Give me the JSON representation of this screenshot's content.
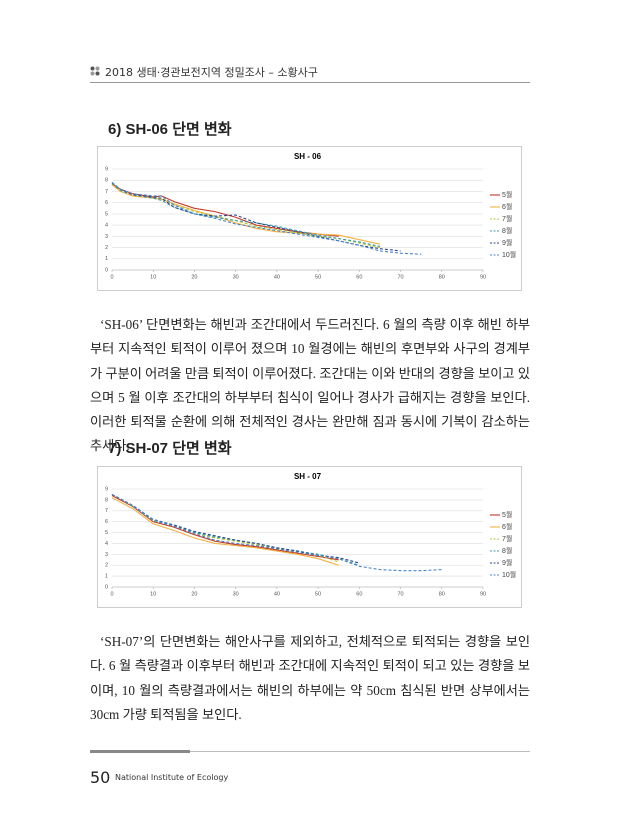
{
  "header": {
    "title": "2018 생태·경관보전지역 정밀조사 – 소황사구"
  },
  "sections": [
    {
      "heading": "6) SH-06 단면 변화",
      "paragraph": "‘SH-06’ 단면변화는 해빈과 조간대에서 두드러진다. 6 월의 측량 이후 해빈 하부부터 지속적인 퇴적이 이루어 졌으며 10 월경에는 해빈의 후면부와 사구의 경계부가 구분이 어려울 만큼 퇴적이 이루어졌다. 조간대는 이와 반대의 경향을 보이고 있으며 5 월 이후 조간대의 하부부터 침식이 일어나 경사가 급해지는 경향을 보인다. 이러한 퇴적물 순환에 의해 전체적인 경사는 완만해 짐과 동시에 기복이 감소하는 추세다."
    },
    {
      "heading": "7) SH-07 단면 변화",
      "paragraph": "‘SH-07’의 단면변화는 해안사구를 제외하고, 전체적으로 퇴적되는 경향을 보인다. 6 월 측량결과 이후부터 해빈과 조간대에 지속적인 퇴적이 되고 있는 경향을 보이며, 10 월의 측량결과에서는 해빈의 하부에는 약 50cm 침식된 반면 상부에서는 30cm 가량 퇴적됨을 보인다."
    }
  ],
  "chart_data": [
    {
      "type": "line",
      "title": "SH - 06",
      "x": [
        0,
        2,
        5,
        10,
        12,
        15,
        20,
        25,
        30,
        35,
        40,
        45,
        50,
        55,
        60,
        65,
        70,
        75
      ],
      "series": [
        {
          "name": "5월",
          "color": "#c0392b",
          "style": "solid",
          "values": [
            7.7,
            7.2,
            6.8,
            6.5,
            6.6,
            6.1,
            5.5,
            5.2,
            4.7,
            4.0,
            3.7,
            3.4,
            3.2,
            3.0,
            null,
            null,
            null,
            null
          ]
        },
        {
          "name": "6월",
          "color": "#f5b041",
          "style": "solid",
          "values": [
            7.6,
            7.0,
            6.6,
            6.4,
            6.3,
            5.9,
            5.3,
            4.8,
            4.2,
            3.7,
            3.4,
            3.3,
            3.2,
            3.1,
            2.7,
            2.3,
            null,
            null
          ]
        },
        {
          "name": "7월",
          "color": "#b7c93a",
          "style": "dashed",
          "values": [
            7.7,
            7.1,
            6.8,
            6.4,
            6.4,
            5.8,
            5.2,
            4.8,
            4.4,
            3.9,
            3.6,
            3.3,
            3.0,
            2.8,
            2.4,
            2.0,
            null,
            null
          ]
        },
        {
          "name": "8월",
          "color": "#3aa0a8",
          "style": "dashed",
          "values": [
            7.7,
            7.1,
            6.7,
            6.4,
            6.2,
            5.6,
            5.0,
            4.7,
            4.4,
            4.2,
            3.9,
            3.5,
            3.1,
            2.8,
            2.5,
            2.1,
            null,
            null
          ]
        },
        {
          "name": "9월",
          "color": "#2e4a8c",
          "style": "dashed",
          "values": [
            7.8,
            7.2,
            6.7,
            6.5,
            6.4,
            5.6,
            5.0,
            4.8,
            4.9,
            4.2,
            3.8,
            3.4,
            3.0,
            2.6,
            2.2,
            1.9,
            1.7,
            null
          ]
        },
        {
          "name": "10월",
          "color": "#4a86c8",
          "style": "dashed",
          "values": [
            7.8,
            7.2,
            6.8,
            6.6,
            6.6,
            5.8,
            5.0,
            4.6,
            4.1,
            3.8,
            3.5,
            3.2,
            2.9,
            2.6,
            2.2,
            1.7,
            1.5,
            1.4
          ]
        }
      ],
      "xlim": [
        0,
        90
      ],
      "xticks": [
        0,
        10,
        20,
        30,
        40,
        50,
        60,
        70,
        80,
        90
      ],
      "ylim": [
        0,
        9
      ],
      "yticks": [
        0,
        1,
        2,
        3,
        4,
        5,
        6,
        7,
        8,
        9
      ],
      "grid": true
    },
    {
      "type": "line",
      "title": "SH - 07",
      "x": [
        0,
        2,
        5,
        10,
        15,
        20,
        25,
        30,
        35,
        40,
        45,
        50,
        55,
        60,
        65,
        70,
        75,
        80
      ],
      "series": [
        {
          "name": "5월",
          "color": "#c0392b",
          "style": "solid",
          "values": [
            8.4,
            8.0,
            7.4,
            6.0,
            5.5,
            4.8,
            4.2,
            3.9,
            3.7,
            3.4,
            3.1,
            2.8,
            2.5,
            null,
            null,
            null,
            null,
            null
          ]
        },
        {
          "name": "6월",
          "color": "#f5b041",
          "style": "solid",
          "values": [
            8.2,
            7.8,
            7.2,
            5.8,
            5.2,
            4.5,
            4.0,
            3.8,
            3.6,
            3.3,
            3.0,
            2.6,
            2.0,
            null,
            null,
            null,
            null,
            null
          ]
        },
        {
          "name": "7월",
          "color": "#b7c93a",
          "style": "dashed",
          "values": [
            8.5,
            8.1,
            7.4,
            6.1,
            5.6,
            4.9,
            4.5,
            4.2,
            3.9,
            3.5,
            3.2,
            2.9,
            2.3,
            null,
            null,
            null,
            null,
            null
          ]
        },
        {
          "name": "8월",
          "color": "#3aa0a8",
          "style": "dashed",
          "values": [
            8.5,
            8.1,
            7.4,
            6.1,
            5.6,
            5.0,
            4.6,
            4.3,
            4.0,
            3.6,
            3.3,
            3.0,
            2.6,
            2.0,
            null,
            null,
            null,
            null
          ]
        },
        {
          "name": "9월",
          "color": "#2e4a8c",
          "style": "dashed",
          "values": [
            8.5,
            8.1,
            7.5,
            6.2,
            5.7,
            5.1,
            4.7,
            4.3,
            4.0,
            3.6,
            3.3,
            2.9,
            2.7,
            2.2,
            null,
            null,
            null,
            null
          ]
        },
        {
          "name": "10월",
          "color": "#4a86c8",
          "style": "dashed",
          "values": [
            8.5,
            8.1,
            7.5,
            6.2,
            5.6,
            4.9,
            4.3,
            4.0,
            3.8,
            3.5,
            3.2,
            2.9,
            2.6,
            1.9,
            1.6,
            1.5,
            1.5,
            1.6
          ]
        }
      ],
      "xlim": [
        0,
        90
      ],
      "xticks": [
        0,
        10,
        20,
        30,
        40,
        50,
        60,
        70,
        80,
        90
      ],
      "ylim": [
        0,
        9
      ],
      "yticks": [
        0,
        1,
        2,
        3,
        4,
        5,
        6,
        7,
        8,
        9
      ],
      "grid": true
    }
  ],
  "footer": {
    "page": "50",
    "publisher": "National Institute of Ecology"
  }
}
